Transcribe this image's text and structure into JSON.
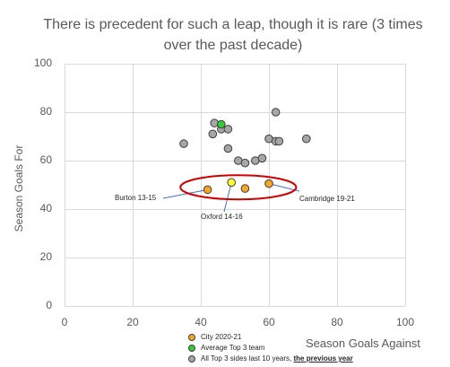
{
  "chart_data": {
    "type": "scatter",
    "title": "There is precedent for such a leap, though it is rare (3 times over the past decade)",
    "xlabel": "Season Goals Against",
    "ylabel": "Season Goals For",
    "xlim": [
      0,
      100
    ],
    "ylim": [
      0,
      100
    ],
    "xticks": [
      "0",
      "20",
      "40",
      "60",
      "80",
      "100"
    ],
    "yticks": [
      "0",
      "20",
      "40",
      "60",
      "80",
      "100"
    ],
    "grid": true,
    "legend_position": "bottom",
    "series": [
      {
        "name": "City 2020-21",
        "color": "#f5a623",
        "points": [
          {
            "x": 42,
            "y": 48,
            "label": "Burton 13-15"
          },
          {
            "x": 53,
            "y": 48.5
          },
          {
            "x": 60,
            "y": 50.5,
            "label": "Cambridge 19-21"
          }
        ]
      },
      {
        "name": "Average Top 3 team",
        "color": "#33cc33",
        "points": [
          {
            "x": 46,
            "y": 75
          }
        ]
      },
      {
        "name": "All Top 3 sides last 10 years,",
        "name_suffix": "the previous year",
        "color": "#a6a6a6",
        "points": [
          {
            "x": 35,
            "y": 67
          },
          {
            "x": 44,
            "y": 75.5
          },
          {
            "x": 46,
            "y": 73
          },
          {
            "x": 48,
            "y": 73
          },
          {
            "x": 43.5,
            "y": 71
          },
          {
            "x": 48,
            "y": 65
          },
          {
            "x": 51,
            "y": 60
          },
          {
            "x": 53,
            "y": 59
          },
          {
            "x": 56,
            "y": 60
          },
          {
            "x": 58,
            "y": 61
          },
          {
            "x": 60,
            "y": 69
          },
          {
            "x": 62,
            "y": 80
          },
          {
            "x": 62,
            "y": 68
          },
          {
            "x": 63,
            "y": 68
          },
          {
            "x": 71,
            "y": 69
          }
        ]
      },
      {
        "name": "",
        "color": "#ffff33",
        "points": [
          {
            "x": 49,
            "y": 51,
            "label": "Oxford 14-16"
          }
        ]
      }
    ],
    "annotations": [
      {
        "text": "Burton 13-15"
      },
      {
        "text": "Oxford 14-16"
      },
      {
        "text": "Cambridge 19-21"
      }
    ],
    "highlight_ellipse": {
      "cx": 51,
      "cy": 49,
      "rx": 17,
      "ry": 5,
      "color": "#d00000"
    }
  }
}
